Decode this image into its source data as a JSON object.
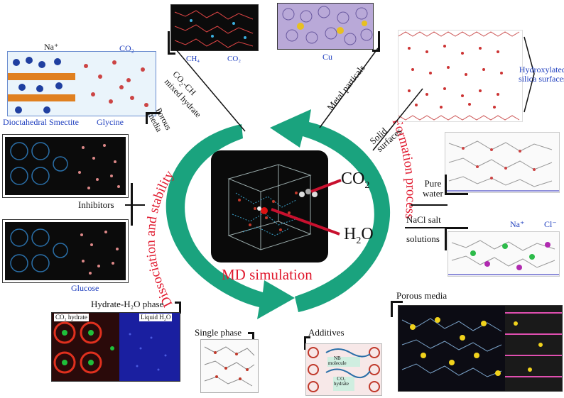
{
  "center": {
    "title": "MD simulation",
    "co2": "CO",
    "co2_sub": "2",
    "h2o_pre": "H",
    "h2o_sub": "2",
    "h2o_post": "O"
  },
  "cycle": {
    "left_label": "Dissociation and stability",
    "right_label": "Formation process"
  },
  "labels": {
    "porous_media_left_1": "Porous",
    "porous_media_left_2": "media",
    "mixed_hydrate_1": "CO",
    "mixed_hydrate_1b": "-CH",
    "mixed_hydrate_2": "mixed hydrate",
    "metal_particals": "Metal particals",
    "solid_surfaces_1": "Solid",
    "solid_surfaces_2": "surfaces",
    "pure_water_1": "Pure",
    "pure_water_2": "water",
    "nacl_1": "NaCl salt",
    "nacl_2": "solutions",
    "porous_media_right": "Porous media",
    "additives": "Additives",
    "single_phase": "Single phase",
    "hydrate_h2o_phase": "Hydrate-H₂O phase",
    "inhibitors": "Inhibitors"
  },
  "panel_text": {
    "na": "Na⁺",
    "co2_top": "CO₂",
    "smectite": "Dioctahedral Smectite",
    "glycine": "Glycine",
    "glucose": "Glucose",
    "ch4": "CH₄",
    "co2_mixed": "CO₂",
    "cu": "Cu",
    "hydroxylated_1": "Hydroxylated",
    "hydroxylated_2": "silica surfaces",
    "na_plus": "Na⁺",
    "cl_minus": "Cl⁻",
    "co2_hydrate": "CO₂ hydrate",
    "liquid_h2o": "Liquid H₂O",
    "nb_molecule_1": "NB",
    "nb_molecule_2": "molecule",
    "co2_hydrate_2": "CO₂",
    "hydrate_word": "hydrate"
  },
  "colors": {
    "arrow_green": "#1aa37e",
    "title_red": "#e0182d",
    "label_blue": "#1f3fbf",
    "arrow_red": "#c8102e"
  }
}
